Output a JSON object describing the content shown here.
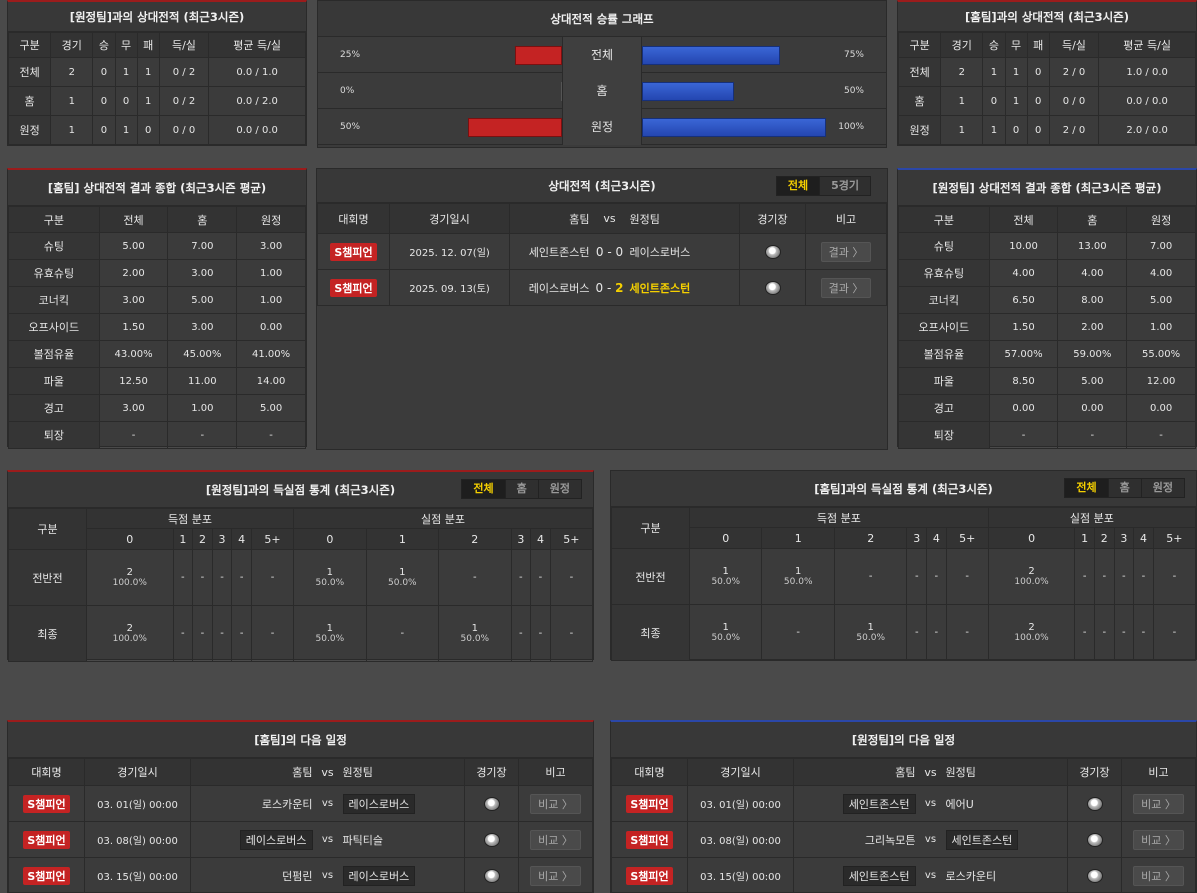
{
  "away_h2h": {
    "title": "[원정팀]과의 상대전적 (최근3시즌)",
    "headers": [
      "구분",
      "경기",
      "승",
      "무",
      "패",
      "득/실",
      "평균 득/실"
    ],
    "rows": [
      [
        "전체",
        "2",
        "0",
        "1",
        "1",
        "0 / 2",
        "0.0 / 1.0"
      ],
      [
        "홈",
        "1",
        "0",
        "0",
        "1",
        "0 / 2",
        "0.0 / 2.0"
      ],
      [
        "원정",
        "1",
        "0",
        "1",
        "0",
        "0 / 0",
        "0.0 / 0.0"
      ]
    ]
  },
  "graph": {
    "title": "상대전적 승률 그래프",
    "rows": [
      {
        "label": "전체",
        "left_pct": "25%",
        "right_pct": "75%",
        "left": 0.25,
        "right": 0.75
      },
      {
        "label": "홈",
        "left_pct": "0%",
        "right_pct": "50%",
        "left": 0.0,
        "right": 0.5
      },
      {
        "label": "원정",
        "left_pct": "50%",
        "right_pct": "100%",
        "left": 0.5,
        "right": 1.0
      }
    ]
  },
  "home_h2h": {
    "title": "[홈팀]과의 상대전적 (최근3시즌)",
    "headers": [
      "구분",
      "경기",
      "승",
      "무",
      "패",
      "득/실",
      "평균 득/실"
    ],
    "rows": [
      [
        "전체",
        "2",
        "1",
        "1",
        "0",
        "2 / 0",
        "1.0 / 0.0"
      ],
      [
        "홈",
        "1",
        "0",
        "1",
        "0",
        "0 / 0",
        "0.0 / 0.0"
      ],
      [
        "원정",
        "1",
        "1",
        "0",
        "0",
        "2 / 0",
        "2.0 / 0.0"
      ]
    ]
  },
  "home_summary": {
    "title": "[홈팀] 상대전적 결과 종합 (최근3시즌 평균)",
    "headers": [
      "구분",
      "전체",
      "홈",
      "원정"
    ],
    "rows": [
      [
        "슈팅",
        "5.00",
        "7.00",
        "3.00"
      ],
      [
        "유효슈팅",
        "2.00",
        "3.00",
        "1.00"
      ],
      [
        "코너킥",
        "3.00",
        "5.00",
        "1.00"
      ],
      [
        "오프사이드",
        "1.50",
        "3.00",
        "0.00"
      ],
      [
        "볼점유율",
        "43.00%",
        "45.00%",
        "41.00%"
      ],
      [
        "파울",
        "12.50",
        "11.00",
        "14.00"
      ],
      [
        "경고",
        "3.00",
        "1.00",
        "5.00"
      ],
      [
        "퇴장",
        "-",
        "-",
        "-"
      ]
    ]
  },
  "matches": {
    "title": "상대전적 (최근3시즌)",
    "tabs": [
      "전체",
      "5경기"
    ],
    "headers": {
      "league": "대회명",
      "date": "경기일시",
      "home": "홈팀",
      "vs": "vs",
      "away": "원정팀",
      "venue": "경기장",
      "note": "비고"
    },
    "rows": [
      {
        "league": "S챔피언",
        "date": "2025. 12. 07(일)",
        "home": "세인트존스턴",
        "hs": "0",
        "sep": "-",
        "as": "0",
        "away": "레이스로버스",
        "away_hl": false,
        "btn": "결과 〉"
      },
      {
        "league": "S챔피언",
        "date": "2025. 09. 13(토)",
        "home": "레이스로버스",
        "hs": "0",
        "sep": "-",
        "as": "2",
        "away": "세인트존스턴",
        "away_hl": true,
        "btn": "결과 〉"
      }
    ]
  },
  "away_summary": {
    "title": "[원정팀] 상대전적 결과 종합 (최근3시즌 평균)",
    "headers": [
      "구분",
      "전체",
      "홈",
      "원정"
    ],
    "rows": [
      [
        "슈팅",
        "10.00",
        "13.00",
        "7.00"
      ],
      [
        "유효슈팅",
        "4.00",
        "4.00",
        "4.00"
      ],
      [
        "코너킥",
        "6.50",
        "8.00",
        "5.00"
      ],
      [
        "오프사이드",
        "1.50",
        "2.00",
        "1.00"
      ],
      [
        "볼점유율",
        "57.00%",
        "59.00%",
        "55.00%"
      ],
      [
        "파울",
        "8.50",
        "5.00",
        "12.00"
      ],
      [
        "경고",
        "0.00",
        "0.00",
        "0.00"
      ],
      [
        "퇴장",
        "-",
        "-",
        "-"
      ]
    ]
  },
  "away_goals": {
    "title": "[원정팀]과의 득실점 통계 (최근3시즌)",
    "tabs": [
      "전체",
      "홈",
      "원정"
    ],
    "head": {
      "cat": "구분",
      "scored": "득점 분포",
      "conceded": "실점 분포"
    },
    "cols": [
      "0",
      "1",
      "2",
      "3",
      "4",
      "5+"
    ],
    "rows": [
      {
        "label": "전반전",
        "cells": [
          [
            "2",
            "100.0%"
          ],
          [
            "-",
            ""
          ],
          [
            "-",
            ""
          ],
          [
            "-",
            ""
          ],
          [
            "-",
            ""
          ],
          [
            "-",
            ""
          ],
          [
            "1",
            "50.0%"
          ],
          [
            "1",
            "50.0%"
          ],
          [
            "-",
            ""
          ],
          [
            "-",
            ""
          ],
          [
            "-",
            ""
          ],
          [
            "-",
            ""
          ]
        ]
      },
      {
        "label": "최종",
        "cells": [
          [
            "2",
            "100.0%"
          ],
          [
            "-",
            ""
          ],
          [
            "-",
            ""
          ],
          [
            "-",
            ""
          ],
          [
            "-",
            ""
          ],
          [
            "-",
            ""
          ],
          [
            "1",
            "50.0%"
          ],
          [
            "-",
            ""
          ],
          [
            "1",
            "50.0%"
          ],
          [
            "-",
            ""
          ],
          [
            "-",
            ""
          ],
          [
            "-",
            ""
          ]
        ]
      }
    ]
  },
  "home_goals": {
    "title": "[홈팀]과의 득실점 통계 (최근3시즌)",
    "tabs": [
      "전체",
      "홈",
      "원정"
    ],
    "head": {
      "cat": "구분",
      "scored": "득점 분포",
      "conceded": "실점 분포"
    },
    "cols": [
      "0",
      "1",
      "2",
      "3",
      "4",
      "5+"
    ],
    "rows": [
      {
        "label": "전반전",
        "cells": [
          [
            "1",
            "50.0%"
          ],
          [
            "1",
            "50.0%"
          ],
          [
            "-",
            ""
          ],
          [
            "-",
            ""
          ],
          [
            "-",
            ""
          ],
          [
            "-",
            ""
          ],
          [
            "2",
            "100.0%"
          ],
          [
            "-",
            ""
          ],
          [
            "-",
            ""
          ],
          [
            "-",
            ""
          ],
          [
            "-",
            ""
          ],
          [
            "-",
            ""
          ]
        ]
      },
      {
        "label": "최종",
        "cells": [
          [
            "1",
            "50.0%"
          ],
          [
            "-",
            ""
          ],
          [
            "1",
            "50.0%"
          ],
          [
            "-",
            ""
          ],
          [
            "-",
            ""
          ],
          [
            "-",
            ""
          ],
          [
            "2",
            "100.0%"
          ],
          [
            "-",
            ""
          ],
          [
            "-",
            ""
          ],
          [
            "-",
            ""
          ],
          [
            "-",
            ""
          ],
          [
            "-",
            ""
          ]
        ]
      }
    ]
  },
  "home_next": {
    "title": "[홈팀]의 다음 일정",
    "headers": {
      "league": "대회명",
      "date": "경기일시",
      "home": "홈팀",
      "vs": "vs",
      "away": "원정팀",
      "venue": "경기장",
      "note": "비고"
    },
    "rows": [
      {
        "league": "S챔피언",
        "date": "03. 01(일) 00:00",
        "home": "로스카운티",
        "home_box": false,
        "vs": "vs",
        "away": "레이스로버스",
        "away_box": true,
        "btn": "비교 〉"
      },
      {
        "league": "S챔피언",
        "date": "03. 08(일) 00:00",
        "home": "레이스로버스",
        "home_box": true,
        "vs": "vs",
        "away": "파틱티슬",
        "away_box": false,
        "btn": "비교 〉"
      },
      {
        "league": "S챔피언",
        "date": "03. 15(일) 00:00",
        "home": "던펌린",
        "home_box": false,
        "vs": "vs",
        "away": "레이스로버스",
        "away_box": true,
        "btn": "비교 〉"
      }
    ]
  },
  "away_next": {
    "title": "[원정팀]의 다음 일정",
    "headers": {
      "league": "대회명",
      "date": "경기일시",
      "home": "홈팀",
      "vs": "vs",
      "away": "원정팀",
      "venue": "경기장",
      "note": "비고"
    },
    "rows": [
      {
        "league": "S챔피언",
        "date": "03. 01(일) 00:00",
        "home": "세인트존스턴",
        "home_box": true,
        "vs": "vs",
        "away": "에어U",
        "away_box": false,
        "btn": "비교 〉"
      },
      {
        "league": "S챔피언",
        "date": "03. 08(일) 00:00",
        "home": "그리녹모튼",
        "home_box": false,
        "vs": "vs",
        "away": "세인트존스턴",
        "away_box": true,
        "btn": "비교 〉"
      },
      {
        "league": "S챔피언",
        "date": "03. 15(일) 00:00",
        "home": "세인트존스턴",
        "home_box": true,
        "vs": "vs",
        "away": "로스카운티",
        "away_box": false,
        "btn": "비교 〉"
      }
    ]
  }
}
